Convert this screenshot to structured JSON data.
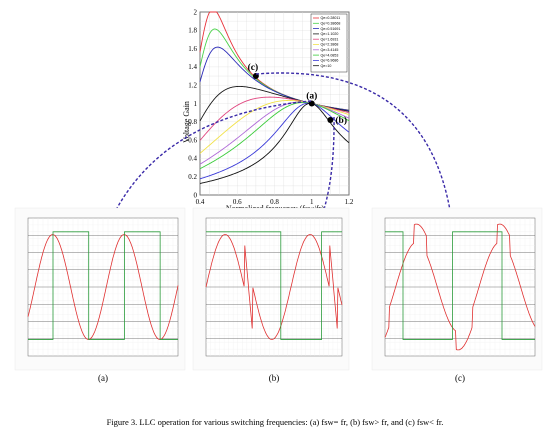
{
  "chart_data": {
    "type": "line",
    "xlabel": "Normalized frequency (fsw/fr)",
    "ylabel": "Voltage Gain",
    "xlim": [
      0.4,
      1.2
    ],
    "ylim": [
      0,
      2
    ],
    "xticks": [
      "0.4",
      "0.6",
      "0.8",
      "1",
      "1.2"
    ],
    "yticks": [
      "0",
      "0.2",
      "0.4",
      "0.6",
      "0.8",
      "1",
      "1.2",
      "1.4",
      "1.6",
      "1.8",
      "2"
    ],
    "legend_position": "top-right",
    "series": [
      {
        "name": "Qe=0.28011",
        "color": "#e8323a"
      },
      {
        "name": "Qe=0.38668",
        "color": "#4ad34a"
      },
      {
        "name": "Qe=0.51691",
        "color": "#2a2ab8"
      },
      {
        "name": "Qe=1.1020",
        "color": "#1a1a1a"
      },
      {
        "name": "Qe=1.6931",
        "color": "#e0457f"
      },
      {
        "name": "Qe=2.3868",
        "color": "#f2e24a"
      },
      {
        "name": "Qe=3.4145",
        "color": "#b06ad8"
      },
      {
        "name": "Qe=4.0853",
        "color": "#3acb3a"
      },
      {
        "name": "Qe=6.9686",
        "color": "#3a3ad8"
      },
      {
        "name": "Qe=10",
        "color": "#111111"
      }
    ],
    "annotations": [
      {
        "label": "(a)",
        "x": 1.0,
        "y": 1.0
      },
      {
        "label": "(b)",
        "x": 1.1,
        "y": 0.82
      },
      {
        "label": "(c)",
        "x": 0.7,
        "y": 1.3
      }
    ]
  },
  "waveforms": [
    {
      "label": "(a)"
    },
    {
      "label": "(b)"
    },
    {
      "label": "(c)"
    }
  ],
  "caption": "Figure 3. LLC operation for various switching frequencies: (a) fsw= fr, (b) fsw> fr, and (c) fsw< fr."
}
